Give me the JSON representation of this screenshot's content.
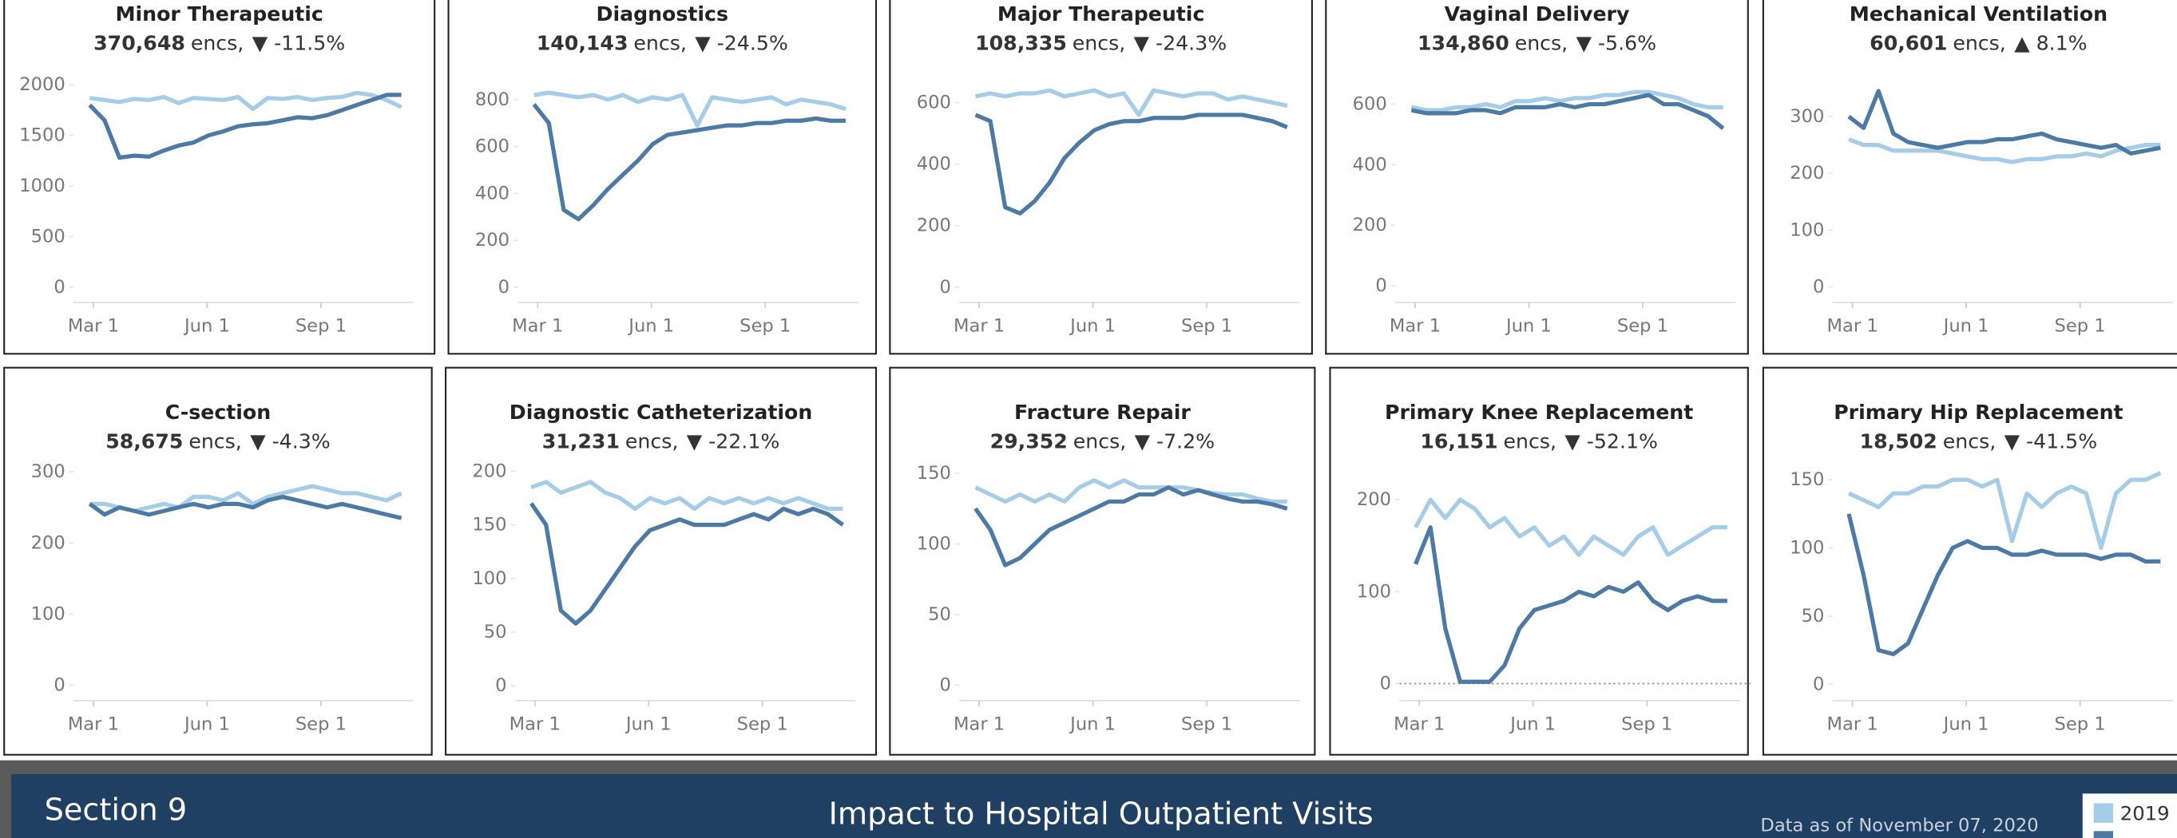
{
  "chart_data": [
    {
      "type": "line",
      "title": "Minor Therapeutic",
      "count": "370,648",
      "unit": "encs,",
      "change": "▼ -11.5%",
      "x": [
        58,
        70,
        82,
        94,
        106,
        118,
        130,
        142,
        154,
        166,
        178,
        190,
        202,
        214,
        226,
        238,
        250,
        262,
        274,
        286,
        298,
        310
      ],
      "xlim": [
        45,
        320
      ],
      "xticks": [
        {
          "value": 61,
          "label": "Mar 1"
        },
        {
          "value": 153,
          "label": "Jun 1"
        },
        {
          "value": 245,
          "label": "Sep 1"
        }
      ],
      "ylim": [
        -110,
        2180
      ],
      "yticks": [
        0,
        500,
        1000,
        1500,
        2000
      ],
      "series": [
        {
          "color": "#a6cde8",
          "values": [
            1870,
            1850,
            1830,
            1860,
            1850,
            1880,
            1820,
            1870,
            1860,
            1850,
            1880,
            1760,
            1870,
            1860,
            1880,
            1850,
            1870,
            1880,
            1920,
            1900,
            1850,
            1780
          ]
        },
        {
          "color": "#4d79a5",
          "values": [
            1800,
            1650,
            1280,
            1300,
            1290,
            1350,
            1400,
            1430,
            1500,
            1540,
            1590,
            1610,
            1620,
            1650,
            1680,
            1670,
            1700,
            1750,
            1800,
            1850,
            1900,
            1900
          ]
        }
      ]
    },
    {
      "type": "line",
      "title": "Diagnostics",
      "count": "140,143",
      "unit": "encs,",
      "change": "▼ -24.5%",
      "x": [
        58,
        70,
        82,
        94,
        106,
        118,
        130,
        142,
        154,
        166,
        178,
        190,
        202,
        214,
        226,
        238,
        250,
        262,
        274,
        286,
        298,
        310
      ],
      "xlim": [
        45,
        320
      ],
      "xticks": [
        {
          "value": 61,
          "label": "Mar 1"
        },
        {
          "value": 153,
          "label": "Jun 1"
        },
        {
          "value": 245,
          "label": "Sep 1"
        }
      ],
      "ylim": [
        -47,
        941
      ],
      "yticks": [
        0,
        200,
        400,
        600,
        800
      ],
      "series": [
        {
          "color": "#a6cde8",
          "values": [
            820,
            830,
            820,
            810,
            820,
            800,
            820,
            790,
            810,
            800,
            820,
            690,
            810,
            800,
            790,
            800,
            810,
            780,
            800,
            790,
            780,
            760
          ]
        },
        {
          "color": "#4d79a5",
          "values": [
            780,
            700,
            330,
            290,
            350,
            420,
            480,
            540,
            610,
            650,
            660,
            670,
            680,
            690,
            690,
            700,
            700,
            710,
            710,
            720,
            710,
            710
          ]
        }
      ]
    },
    {
      "type": "line",
      "title": "Major Therapeutic",
      "count": "108,335",
      "unit": "encs,",
      "change": "▼ -24.3%",
      "x": [
        58,
        70,
        82,
        94,
        106,
        118,
        130,
        142,
        154,
        166,
        178,
        190,
        202,
        214,
        226,
        238,
        250,
        262,
        274,
        286,
        298,
        310
      ],
      "xlim": [
        45,
        320
      ],
      "xticks": [
        {
          "value": 61,
          "label": "Mar 1"
        },
        {
          "value": 153,
          "label": "Jun 1"
        },
        {
          "value": 245,
          "label": "Sep 1"
        }
      ],
      "ylim": [
        -36,
        717
      ],
      "yticks": [
        0,
        200,
        400,
        600
      ],
      "series": [
        {
          "color": "#a6cde8",
          "values": [
            620,
            630,
            620,
            630,
            630,
            640,
            620,
            630,
            640,
            620,
            630,
            560,
            640,
            630,
            620,
            630,
            630,
            610,
            620,
            610,
            600,
            590
          ]
        },
        {
          "color": "#4d79a5",
          "values": [
            560,
            540,
            260,
            240,
            280,
            340,
            420,
            470,
            510,
            530,
            540,
            540,
            550,
            550,
            550,
            560,
            560,
            560,
            560,
            550,
            540,
            520
          ]
        }
      ]
    },
    {
      "type": "line",
      "title": "Vaginal Delivery",
      "count": "134,860",
      "unit": "encs,",
      "change": "▼ -5.6%",
      "x": [
        58,
        70,
        82,
        94,
        106,
        118,
        130,
        142,
        154,
        166,
        178,
        190,
        202,
        214,
        226,
        238,
        250,
        262,
        274,
        286,
        298,
        310
      ],
      "xlim": [
        45,
        320
      ],
      "xticks": [
        {
          "value": 61,
          "label": "Mar 1"
        },
        {
          "value": 153,
          "label": "Jun 1"
        },
        {
          "value": 245,
          "label": "Sep 1"
        }
      ],
      "ylim": [
        -41,
        724
      ],
      "yticks": [
        0,
        200,
        400,
        600
      ],
      "series": [
        {
          "color": "#a6cde8",
          "values": [
            590,
            580,
            580,
            590,
            590,
            600,
            590,
            610,
            610,
            620,
            610,
            620,
            620,
            630,
            630,
            640,
            640,
            630,
            620,
            600,
            590,
            590
          ]
        },
        {
          "color": "#4d79a5",
          "values": [
            580,
            570,
            570,
            570,
            580,
            580,
            570,
            590,
            590,
            590,
            600,
            590,
            600,
            600,
            610,
            620,
            630,
            600,
            600,
            580,
            560,
            520
          ]
        }
      ]
    },
    {
      "type": "line",
      "title": "Mechanical Ventilation",
      "count": "60,601",
      "unit": "encs,",
      "change": "▲ 8.1%",
      "x": [
        58,
        70,
        82,
        94,
        106,
        118,
        130,
        142,
        154,
        166,
        178,
        190,
        202,
        214,
        226,
        238,
        250,
        262,
        274,
        286,
        298,
        310
      ],
      "xlim": [
        45,
        320
      ],
      "xticks": [
        {
          "value": 61,
          "label": "Mar 1"
        },
        {
          "value": 153,
          "label": "Jun 1"
        },
        {
          "value": 245,
          "label": "Sep 1"
        }
      ],
      "ylim": [
        -20,
        388
      ],
      "yticks": [
        0,
        100,
        200,
        300
      ],
      "series": [
        {
          "color": "#a6cde8",
          "values": [
            260,
            250,
            250,
            240,
            240,
            240,
            240,
            235,
            230,
            225,
            225,
            220,
            225,
            225,
            230,
            230,
            235,
            230,
            240,
            245,
            250,
            250
          ]
        },
        {
          "color": "#4d79a5",
          "values": [
            300,
            280,
            345,
            270,
            255,
            250,
            245,
            250,
            255,
            255,
            260,
            260,
            265,
            270,
            260,
            255,
            250,
            245,
            250,
            235,
            240,
            245
          ]
        }
      ]
    },
    {
      "type": "line",
      "title": "C-section",
      "count": "58,675",
      "unit": "encs,",
      "change": "▼ -4.3%",
      "x": [
        58,
        70,
        82,
        94,
        106,
        118,
        130,
        142,
        154,
        166,
        178,
        190,
        202,
        214,
        226,
        238,
        250,
        262,
        274,
        286,
        298,
        310
      ],
      "xlim": [
        45,
        320
      ],
      "xticks": [
        {
          "value": 61,
          "label": "Mar 1"
        },
        {
          "value": 153,
          "label": "Jun 1"
        },
        {
          "value": 245,
          "label": "Sep 1"
        }
      ],
      "ylim": [
        -16,
        310
      ],
      "yticks": [
        0,
        100,
        200,
        300
      ],
      "series": [
        {
          "color": "#a6cde8",
          "values": [
            255,
            255,
            250,
            245,
            250,
            255,
            250,
            265,
            265,
            260,
            270,
            255,
            265,
            270,
            275,
            280,
            275,
            270,
            270,
            265,
            260,
            270
          ]
        },
        {
          "color": "#4d79a5",
          "values": [
            255,
            240,
            250,
            245,
            240,
            245,
            250,
            255,
            250,
            255,
            255,
            250,
            260,
            265,
            260,
            255,
            250,
            255,
            250,
            245,
            240,
            235
          ]
        }
      ]
    },
    {
      "type": "line",
      "title": "Diagnostic Catheterization",
      "count": "31,231",
      "unit": "encs,",
      "change": "▼ -22.1%",
      "x": [
        58,
        70,
        82,
        94,
        106,
        118,
        130,
        142,
        154,
        166,
        178,
        190,
        202,
        214,
        226,
        238,
        250,
        262,
        274,
        286,
        298,
        310
      ],
      "xlim": [
        45,
        320
      ],
      "xticks": [
        {
          "value": 61,
          "label": "Mar 1"
        },
        {
          "value": 153,
          "label": "Jun 1"
        },
        {
          "value": 245,
          "label": "Sep 1"
        }
      ],
      "ylim": [
        -10,
        206
      ],
      "yticks": [
        0,
        50,
        100,
        150,
        200
      ],
      "series": [
        {
          "color": "#a6cde8",
          "values": [
            185,
            190,
            180,
            185,
            190,
            180,
            175,
            165,
            175,
            170,
            175,
            165,
            175,
            170,
            175,
            170,
            175,
            170,
            175,
            170,
            165,
            165
          ]
        },
        {
          "color": "#4d79a5",
          "values": [
            170,
            150,
            70,
            58,
            70,
            90,
            110,
            130,
            145,
            150,
            155,
            150,
            150,
            150,
            155,
            160,
            155,
            165,
            160,
            165,
            160,
            150
          ]
        }
      ]
    },
    {
      "type": "line",
      "title": "Fracture Repair",
      "count": "29,352",
      "unit": "encs,",
      "change": "▼ -7.2%",
      "x": [
        58,
        70,
        82,
        94,
        106,
        118,
        130,
        142,
        154,
        166,
        178,
        190,
        202,
        214,
        226,
        238,
        250,
        262,
        274,
        286,
        298,
        310
      ],
      "xlim": [
        45,
        320
      ],
      "xticks": [
        {
          "value": 61,
          "label": "Mar 1"
        },
        {
          "value": 153,
          "label": "Jun 1"
        },
        {
          "value": 245,
          "label": "Sep 1"
        }
      ],
      "ylim": [
        -8,
        156
      ],
      "yticks": [
        0,
        50,
        100,
        150
      ],
      "series": [
        {
          "color": "#a6cde8",
          "values": [
            140,
            135,
            130,
            135,
            130,
            135,
            130,
            140,
            145,
            140,
            145,
            140,
            140,
            140,
            140,
            138,
            136,
            135,
            135,
            132,
            130,
            130
          ]
        },
        {
          "color": "#4d79a5",
          "values": [
            125,
            110,
            85,
            90,
            100,
            110,
            115,
            120,
            125,
            130,
            130,
            135,
            135,
            140,
            135,
            138,
            135,
            132,
            130,
            130,
            128,
            125
          ]
        }
      ]
    },
    {
      "type": "line",
      "title": "Primary Knee Replacement",
      "count": "16,151",
      "unit": "encs,",
      "change": "▼ -52.1%",
      "x": [
        58,
        70,
        82,
        94,
        106,
        118,
        130,
        142,
        154,
        166,
        178,
        190,
        202,
        214,
        226,
        238,
        250,
        262,
        274,
        286,
        298,
        310
      ],
      "xlim": [
        45,
        320
      ],
      "xticks": [
        {
          "value": 61,
          "label": "Mar 1"
        },
        {
          "value": 153,
          "label": "Jun 1"
        },
        {
          "value": 245,
          "label": "Sep 1"
        }
      ],
      "ylim": [
        -14,
        238
      ],
      "yticks": [
        0,
        100,
        200
      ],
      "zero_line": true,
      "series": [
        {
          "color": "#a6cde8",
          "values": [
            170,
            200,
            180,
            200,
            190,
            170,
            180,
            160,
            170,
            150,
            160,
            140,
            160,
            150,
            140,
            160,
            170,
            140,
            150,
            160,
            170,
            170
          ]
        },
        {
          "color": "#4d79a5",
          "values": [
            130,
            170,
            60,
            2,
            2,
            2,
            20,
            60,
            80,
            85,
            90,
            100,
            95,
            105,
            100,
            110,
            90,
            80,
            90,
            95,
            90,
            90
          ]
        }
      ]
    },
    {
      "type": "line",
      "title": "Primary Hip Replacement",
      "count": "18,502",
      "unit": "encs,",
      "change": "▼ -41.5%",
      "x": [
        58,
        70,
        82,
        94,
        106,
        118,
        130,
        142,
        154,
        166,
        178,
        190,
        202,
        214,
        226,
        238,
        250,
        262,
        274,
        286,
        298,
        310
      ],
      "xlim": [
        45,
        320
      ],
      "xticks": [
        {
          "value": 61,
          "label": "Mar 1"
        },
        {
          "value": 153,
          "label": "Jun 1"
        },
        {
          "value": 245,
          "label": "Sep 1"
        }
      ],
      "ylim": [
        -9,
        161
      ],
      "yticks": [
        0,
        50,
        100,
        150
      ],
      "series": [
        {
          "color": "#a6cde8",
          "values": [
            140,
            135,
            130,
            140,
            140,
            145,
            145,
            150,
            150,
            145,
            150,
            105,
            140,
            130,
            140,
            145,
            140,
            100,
            140,
            150,
            150,
            155
          ]
        },
        {
          "color": "#4d79a5",
          "values": [
            125,
            80,
            25,
            22,
            30,
            55,
            80,
            100,
            105,
            100,
            100,
            95,
            95,
            98,
            95,
            95,
            95,
            92,
            95,
            95,
            90,
            90
          ]
        }
      ]
    }
  ],
  "footer": {
    "section": "Section 9",
    "title": "Impact to Hospital Outpatient Visits",
    "as_of": "Data as of November 07, 2020",
    "legend": [
      {
        "label": "2019",
        "color": "#a6cde8"
      },
      {
        "color": "#4d79a5"
      }
    ]
  }
}
